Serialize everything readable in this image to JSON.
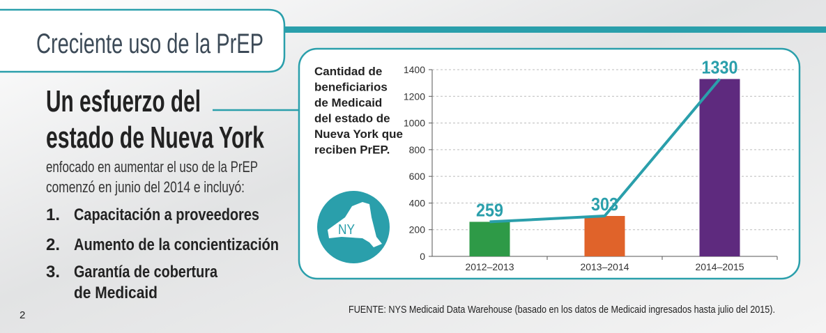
{
  "header": {
    "title": "Creciente uso de la PrEP"
  },
  "heading": [
    "Un esfuerzo del",
    "estado de Nueva York"
  ],
  "intro": [
    "enfocado en aumentar el uso de la PrEP",
    "comenzó en junio del 2014 e incluyó:"
  ],
  "list": [
    {
      "number": "1.",
      "lines": [
        "Capacitación a proveedores"
      ]
    },
    {
      "number": "2.",
      "lines": [
        "Aumento de la concientización"
      ]
    },
    {
      "number": "3.",
      "lines": [
        "Garantía de cobertura",
        "de Medicaid"
      ]
    }
  ],
  "page_number": "2",
  "source": "FUENTE: NYS Medicaid Data Warehouse (basado en los datos de Medicaid ingresados hasta julio del 2015).",
  "map_label": "NY",
  "chart_data": {
    "type": "bar",
    "title": [
      "Cantidad de",
      "beneficiarios",
      "de Medicaid",
      "del estado de",
      "Nueva York que",
      "reciben PrEP."
    ],
    "categories": [
      "2012–2013",
      "2013–2014",
      "2014–2015"
    ],
    "values": [
      259,
      303,
      1330
    ],
    "colors": [
      "#2e9a47",
      "#e0632a",
      "#5e2a7e"
    ],
    "line_color": "#2a9fab",
    "ylim": [
      0,
      1400
    ],
    "yticks": [
      0,
      200,
      400,
      600,
      800,
      1000,
      1200,
      1400
    ],
    "grid": true
  }
}
